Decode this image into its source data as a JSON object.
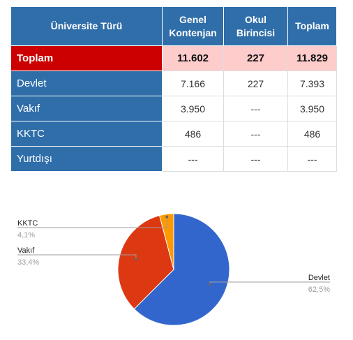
{
  "table": {
    "headers": [
      "Üniversite Türü",
      "Genel\nKontenjan",
      "Okul\nBirincisi",
      "Toplam"
    ],
    "rows": [
      {
        "label": "Toplam",
        "genel": "11.602",
        "okul": "227",
        "toplam": "11.829",
        "total": true
      },
      {
        "label": "Devlet",
        "genel": "7.166",
        "okul": "227",
        "toplam": "7.393"
      },
      {
        "label": "Vakıf",
        "genel": "3.950",
        "okul": "---",
        "toplam": "3.950"
      },
      {
        "label": "KKTC",
        "genel": "486",
        "okul": "---",
        "toplam": "486"
      },
      {
        "label": "Yurtdışı",
        "genel": "---",
        "okul": "---",
        "toplam": "---"
      }
    ]
  },
  "chart_data": {
    "type": "pie",
    "categories": [
      "Devlet",
      "Vakıf",
      "KKTC"
    ],
    "values": [
      62.5,
      33.4,
      4.1
    ],
    "labels": [
      "62,5%",
      "33,4%",
      "4,1%"
    ],
    "colors": [
      "#3366cc",
      "#dc3912",
      "#ff9900"
    ]
  }
}
